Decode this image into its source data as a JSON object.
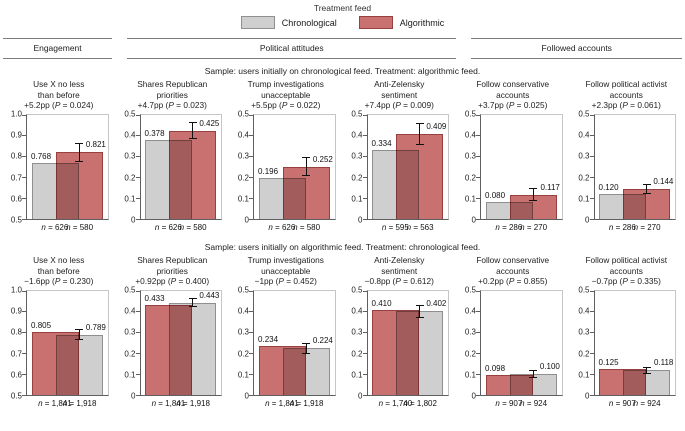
{
  "labels": {
    "p": "P",
    "n": "n"
  },
  "colors": {
    "chronological": {
      "fill": "#cfcfcf",
      "border": "#8f8f8f"
    },
    "algorithmic": {
      "fill": "#c87170",
      "border": "#964040"
    }
  },
  "legend": {
    "title": "Treatment feed",
    "items": [
      {
        "label": "Chronological",
        "group": "chronological"
      },
      {
        "label": "Algorithmic",
        "group": "algorithmic"
      }
    ]
  },
  "sections": [
    {
      "label": "Engagement"
    },
    {
      "label": "Political attitudes"
    },
    {
      "label": "Followed accounts"
    }
  ],
  "chart_data": {
    "type": "bar",
    "grouping": "each panel: control feed bar (left) vs treatment feed bar (right, with 95% CI error bar)",
    "rows": [
      {
        "subtitle": "Sample: users initially on chronological feed. Treatment: algorithmic feed.",
        "panels": [
          {
            "line1": "Use X no less",
            "line2": "than before",
            "effect_pre": "+5.2pp (",
            "effect_post": " = 0.024)",
            "ylim": [
              0.5,
              1.0
            ],
            "yticks": [
              "1.0",
              "0.9",
              "0.8",
              "0.7",
              "0.6",
              "0.5"
            ],
            "bars": [
              {
                "group": "chronological",
                "value": 0.768,
                "value_label": "0.768",
                "n_rest": " = 626"
              },
              {
                "group": "algorithmic",
                "value": 0.821,
                "value_label": "0.821",
                "ci": 0.046,
                "n_rest": " = 580"
              }
            ]
          },
          {
            "line1": "Shares Republican",
            "line2": "priorities",
            "effect_pre": "+4.7pp (",
            "effect_post": " = 0.023)",
            "ylim": [
              0,
              0.5
            ],
            "yticks": [
              "0.5",
              "0.4",
              "0.3",
              "0.2",
              "0.1",
              "0"
            ],
            "bars": [
              {
                "group": "chronological",
                "value": 0.378,
                "value_label": "0.378",
                "n_rest": " = 626"
              },
              {
                "group": "algorithmic",
                "value": 0.425,
                "value_label": "0.425",
                "ci": 0.04,
                "n_rest": " = 580"
              }
            ]
          },
          {
            "line1": "Trump investigations",
            "line2": "unacceptable",
            "effect_pre": "+5.5pp (",
            "effect_post": " = 0.022)",
            "ylim": [
              0,
              0.5
            ],
            "yticks": [
              "0.5",
              "0.4",
              "0.3",
              "0.2",
              "0.1",
              "0"
            ],
            "bars": [
              {
                "group": "chronological",
                "value": 0.196,
                "value_label": "0.196",
                "n_rest": " = 626"
              },
              {
                "group": "algorithmic",
                "value": 0.252,
                "value_label": "0.252",
                "ci": 0.045,
                "n_rest": " = 580"
              }
            ]
          },
          {
            "line1": "Anti-Zelensky",
            "line2": "sentiment",
            "effect_pre": "+7.4pp (",
            "effect_post": " = 0.009)",
            "ylim": [
              0,
              0.5
            ],
            "yticks": [
              "0.5",
              "0.4",
              "0.3",
              "0.2",
              "0.1",
              "0"
            ],
            "bars": [
              {
                "group": "chronological",
                "value": 0.334,
                "value_label": "0.334",
                "n_rest": " = 595"
              },
              {
                "group": "algorithmic",
                "value": 0.409,
                "value_label": "0.409",
                "ci": 0.055,
                "n_rest": " = 563"
              }
            ]
          },
          {
            "line1": "Follow conservative",
            "line2": "accounts",
            "effect_pre": "+3.7pp (",
            "effect_post": " = 0.025)",
            "ylim": [
              0,
              0.5
            ],
            "yticks": [
              "0.5",
              "0.4",
              "0.3",
              "0.2",
              "0.1",
              "0"
            ],
            "bars": [
              {
                "group": "chronological",
                "value": 0.08,
                "value_label": "0.080",
                "n_rest": " = 286"
              },
              {
                "group": "algorithmic",
                "value": 0.117,
                "value_label": "0.117",
                "ci": 0.032,
                "n_rest": " = 270"
              }
            ]
          },
          {
            "line1": "Follow political activist",
            "line2": "accounts",
            "effect_pre": "+2.3pp (",
            "effect_post": " = 0.061)",
            "ylim": [
              0,
              0.5
            ],
            "yticks": [
              "0.5",
              "0.4",
              "0.3",
              "0.2",
              "0.1",
              "0"
            ],
            "bars": [
              {
                "group": "chronological",
                "value": 0.12,
                "value_label": "0.120",
                "n_rest": " = 286"
              },
              {
                "group": "algorithmic",
                "value": 0.144,
                "value_label": "0.144",
                "ci": 0.025,
                "n_rest": " = 270"
              }
            ]
          }
        ]
      },
      {
        "subtitle": "Sample: users initially on algorithmic feed. Treatment: chronological feed.",
        "panels": [
          {
            "line1": "Use X no less",
            "line2": "than before",
            "effect_pre": "−1.6pp (",
            "effect_post": " = 0.230)",
            "ylim": [
              0.5,
              1.0
            ],
            "yticks": [
              "1.0",
              "0.9",
              "0.8",
              "0.7",
              "0.6",
              "0.5"
            ],
            "bars": [
              {
                "group": "algorithmic",
                "value": 0.805,
                "value_label": "0.805",
                "n_rest": " = 1,841"
              },
              {
                "group": "chronological",
                "value": 0.789,
                "value_label": "0.789",
                "ci": 0.026,
                "n_rest": " = 1,918"
              }
            ]
          },
          {
            "line1": "Shares Republican",
            "line2": "priorities",
            "effect_pre": "+0.92pp (",
            "effect_post": " = 0.400)",
            "ylim": [
              0,
              0.5
            ],
            "yticks": [
              "0.5",
              "0.4",
              "0.3",
              "0.2",
              "0.1",
              "0"
            ],
            "bars": [
              {
                "group": "algorithmic",
                "value": 0.433,
                "value_label": "0.433",
                "n_rest": " = 1,841"
              },
              {
                "group": "chronological",
                "value": 0.443,
                "value_label": "0.443",
                "ci": 0.022,
                "n_rest": " = 1,918"
              }
            ]
          },
          {
            "line1": "Trump investigations",
            "line2": "unacceptable",
            "effect_pre": "−1pp (",
            "effect_post": " = 0.452)",
            "ylim": [
              0,
              0.5
            ],
            "yticks": [
              "0.5",
              "0.4",
              "0.3",
              "0.2",
              "0.1",
              "0"
            ],
            "bars": [
              {
                "group": "algorithmic",
                "value": 0.234,
                "value_label": "0.234",
                "n_rest": " = 1,841"
              },
              {
                "group": "chronological",
                "value": 0.224,
                "value_label": "0.224",
                "ci": 0.026,
                "n_rest": " = 1,918"
              }
            ]
          },
          {
            "line1": "Anti-Zelensky",
            "line2": "sentiment",
            "effect_pre": "−0.8pp (",
            "effect_post": " = 0.612)",
            "ylim": [
              0,
              0.5
            ],
            "yticks": [
              "0.5",
              "0.4",
              "0.3",
              "0.2",
              "0.1",
              "0"
            ],
            "bars": [
              {
                "group": "algorithmic",
                "value": 0.41,
                "value_label": "0.410",
                "n_rest": " = 1,740"
              },
              {
                "group": "chronological",
                "value": 0.402,
                "value_label": "0.402",
                "ci": 0.03,
                "n_rest": " = 1,802"
              }
            ]
          },
          {
            "line1": "Follow conservative",
            "line2": "accounts",
            "effect_pre": "+0.2pp (",
            "effect_post": " = 0.855)",
            "ylim": [
              0,
              0.5
            ],
            "yticks": [
              "0.5",
              "0.4",
              "0.3",
              "0.2",
              "0.1",
              "0"
            ],
            "bars": [
              {
                "group": "algorithmic",
                "value": 0.098,
                "value_label": "0.098",
                "n_rest": " = 907"
              },
              {
                "group": "chronological",
                "value": 0.1,
                "value_label": "0.100",
                "ci": 0.02,
                "n_rest": " = 924"
              }
            ]
          },
          {
            "line1": "Follow political activist",
            "line2": "accounts",
            "effect_pre": "−0.7pp (",
            "effect_post": " = 0.335)",
            "ylim": [
              0,
              0.5
            ],
            "yticks": [
              "0.5",
              "0.4",
              "0.3",
              "0.2",
              "0.1",
              "0"
            ],
            "bars": [
              {
                "group": "algorithmic",
                "value": 0.125,
                "value_label": "0.125",
                "n_rest": " = 907"
              },
              {
                "group": "chronological",
                "value": 0.118,
                "value_label": "0.118",
                "ci": 0.017,
                "n_rest": " = 924"
              }
            ]
          }
        ]
      }
    ]
  }
}
